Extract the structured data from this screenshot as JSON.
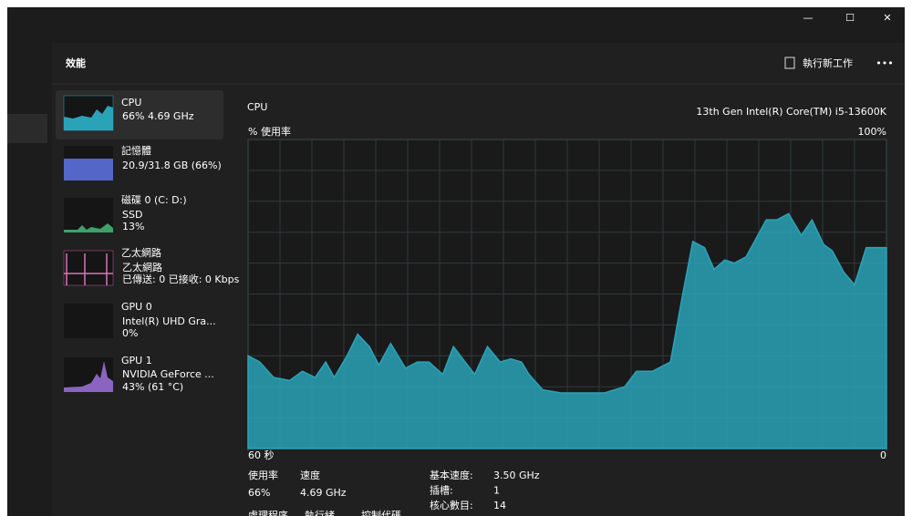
{
  "header": {
    "title": "效能",
    "run_task": "執行新工作",
    "more": "•••"
  },
  "sidebar": [
    {
      "name": "CPU",
      "lines": [
        "66% 4.69 GHz"
      ]
    },
    {
      "name": "記憶體",
      "lines": [
        "20.9/31.8 GB (66%)"
      ]
    },
    {
      "name": "磁碟 0 (C: D:)",
      "lines": [
        "SSD",
        "13%"
      ]
    },
    {
      "name": "乙太網路",
      "lines": [
        "乙太網路",
        "已傳送: 0 已接收: 0 Kbps"
      ]
    },
    {
      "name": "GPU 0",
      "lines": [
        "Intel(R) UHD Gra...",
        "0%"
      ]
    },
    {
      "name": "GPU 1",
      "lines": [
        "NVIDIA GeForce ...",
        "43% (61 °C)"
      ]
    }
  ],
  "graph": {
    "title": "CPU",
    "model": "13th Gen Intel(R) Core(TM) i5-13600K",
    "y_label": "% 使用率",
    "ylim": [
      0,
      100
    ],
    "yticks": [
      {
        "value": 100,
        "label": "100%"
      }
    ],
    "xlim": [
      60,
      0
    ],
    "xticks": [
      {
        "value": 60,
        "label": "60 秒"
      },
      0
    ],
    "color": "#2aa3b8",
    "x": [
      60,
      58.9,
      57.6,
      56.1,
      54.9,
      53.7,
      52.7,
      51.9,
      50.7,
      49.7,
      48.6,
      47.7,
      46.6,
      45.2,
      44.1,
      43.0,
      41.7,
      40.7,
      39.6,
      38.7,
      37.5,
      36.3,
      35.3,
      34.3,
      33.6,
      32.3,
      30.6,
      28.5,
      26.5,
      24.6,
      23.5,
      22.0,
      20.3,
      19.2,
      18.2,
      17.1,
      16.2,
      15.2,
      14.3,
      13.2,
      11.3,
      10.3,
      9.2,
      8.0,
      7.0,
      5.9,
      5.1,
      4.0,
      3.0,
      1.9,
      0
    ],
    "values": [
      30,
      28,
      23,
      22,
      25,
      23,
      28,
      23,
      30,
      37,
      33,
      27,
      34,
      26,
      28,
      28,
      24,
      33,
      28,
      24,
      33,
      28,
      29,
      28,
      24,
      19,
      18,
      18,
      18,
      20,
      25,
      25,
      28,
      49,
      67,
      65,
      58,
      61,
      60,
      62,
      74,
      74,
      76,
      69,
      74,
      66,
      64,
      57,
      53,
      65,
      65
    ]
  },
  "stats": [
    {
      "label": "使用率",
      "value": "66%"
    },
    {
      "label": "速度",
      "value": "4.69 GHz"
    }
  ],
  "details": [
    {
      "label": "基本速度:",
      "value": "3.50 GHz"
    },
    {
      "label": "插槽:",
      "value": "1"
    },
    {
      "label": "核心數目:",
      "value": "14"
    }
  ],
  "more_labels": [
    "處理程序",
    "執行緒",
    "控制代碼"
  ],
  "window_controls": [
    "—",
    "☐",
    "✕"
  ]
}
